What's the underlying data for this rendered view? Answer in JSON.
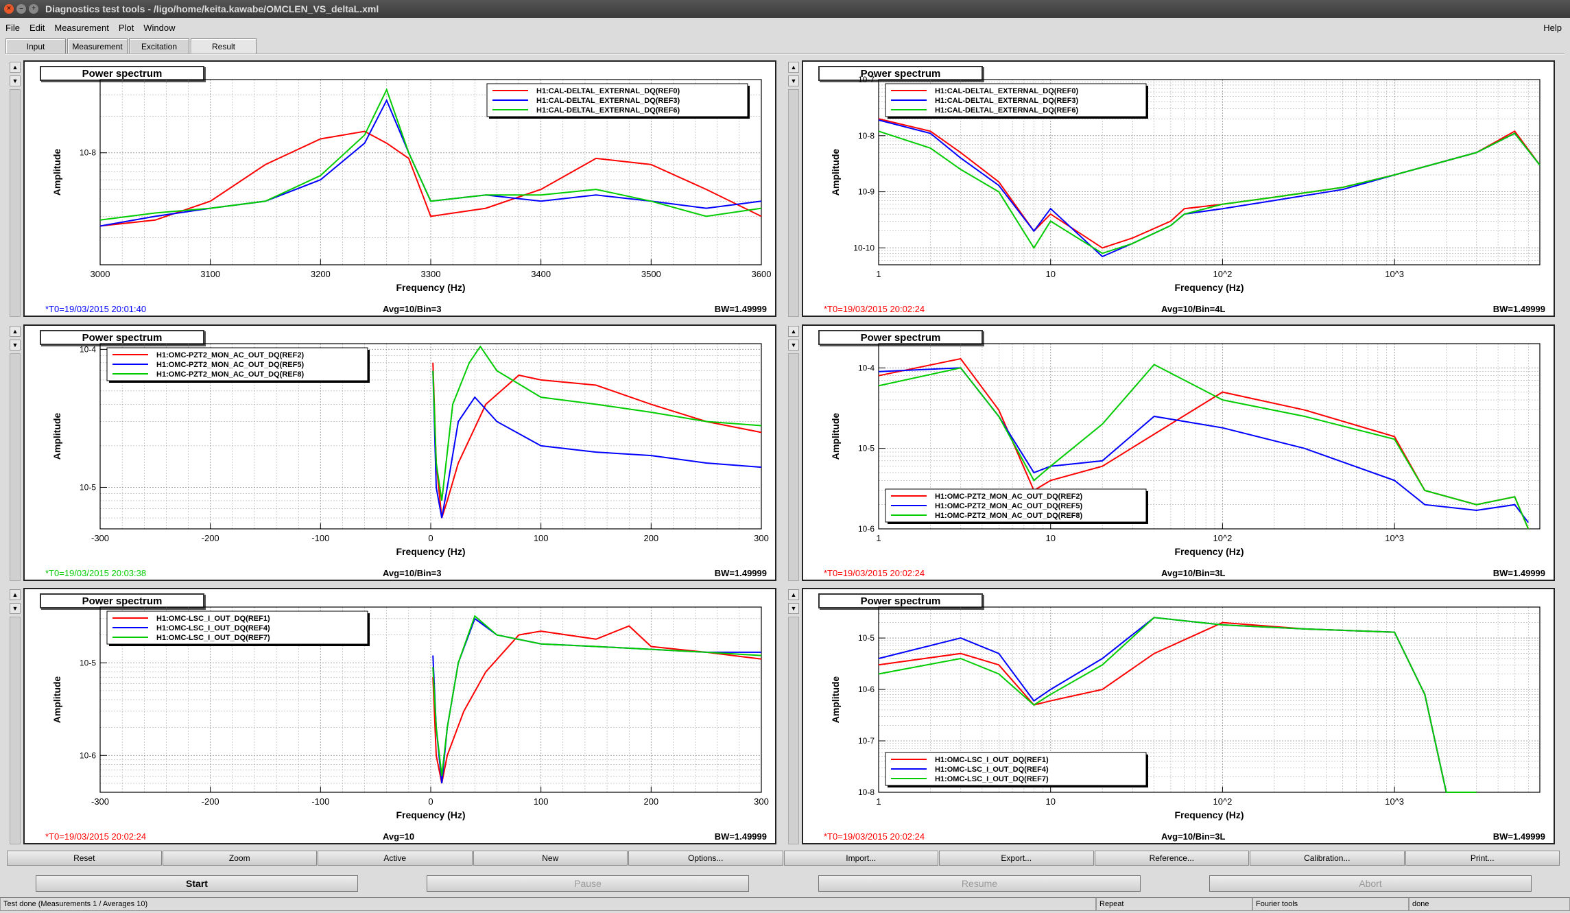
{
  "window": {
    "title": "Diagnostics test tools - /ligo/home/keita.kawabe/OMCLEN_VS_deltaL.xml"
  },
  "menu": {
    "items": [
      "File",
      "Edit",
      "Measurement",
      "Plot",
      "Window"
    ],
    "help": "Help"
  },
  "tabs": [
    "Input",
    "Measurement",
    "Excitation",
    "Result"
  ],
  "colors": {
    "ref_a": "#ff0000",
    "ref_b": "#0000ff",
    "ref_c": "#00cc00"
  },
  "panels": [
    {
      "title": "Power spectrum",
      "t0": "*T0=19/03/2015 20:01:40",
      "t0_color": "#0000ff",
      "avg": "Avg=10/Bin=3",
      "bw": "BW=1.49999",
      "xlabel": "Frequency (Hz)",
      "ylabel": "Amplitude"
    },
    {
      "title": "Power spectrum",
      "t0": "*T0=19/03/2015 20:02:24",
      "t0_color": "#ff0000",
      "avg": "Avg=10/Bin=4L",
      "bw": "BW=1.49999",
      "xlabel": "Frequency (Hz)",
      "ylabel": "Amplitude"
    },
    {
      "title": "Power spectrum",
      "t0": "*T0=19/03/2015 20:03:38",
      "t0_color": "#00cc00",
      "avg": "Avg=10/Bin=3",
      "bw": "BW=1.49999",
      "xlabel": "Frequency (Hz)",
      "ylabel": "Amplitude"
    },
    {
      "title": "Power spectrum",
      "t0": "*T0=19/03/2015 20:02:24",
      "t0_color": "#ff0000",
      "avg": "Avg=10/Bin=3L",
      "bw": "BW=1.49999",
      "xlabel": "Frequency (Hz)",
      "ylabel": "Amplitude"
    },
    {
      "title": "Power spectrum",
      "t0": "*T0=19/03/2015 20:02:24",
      "t0_color": "#ff0000",
      "avg": "Avg=10",
      "bw": "BW=1.49999",
      "xlabel": "Frequency (Hz)",
      "ylabel": "Amplitude"
    },
    {
      "title": "Power spectrum",
      "t0": "*T0=19/03/2015 20:02:24",
      "t0_color": "#ff0000",
      "avg": "Avg=10/Bin=3L",
      "bw": "BW=1.49999",
      "xlabel": "Frequency (Hz)",
      "ylabel": "Amplitude"
    }
  ],
  "chart_data": [
    {
      "type": "line",
      "xscale": "linear",
      "yscale": "log",
      "xlim": [
        3000,
        3600
      ],
      "ylim": [
        1.2e-09,
        4e-08
      ],
      "xticks": [
        "3000",
        "3100",
        "3200",
        "3300",
        "3400",
        "3500",
        "3600"
      ],
      "yticks": [
        {
          "v": 1e-08,
          "label": "10-8"
        }
      ],
      "legend_pos": "top-right",
      "series": [
        {
          "name": "H1:CAL-DELTAL_EXTERNAL_DQ(REF0)",
          "color": "#ff0000",
          "x": [
            3000,
            3050,
            3100,
            3150,
            3200,
            3240,
            3260,
            3280,
            3300,
            3350,
            3400,
            3450,
            3500,
            3550,
            3600
          ],
          "y": [
            2.5e-09,
            2.8e-09,
            4e-09,
            8e-09,
            1.3e-08,
            1.5e-08,
            1.2e-08,
            9e-09,
            3e-09,
            3.5e-09,
            5e-09,
            9e-09,
            8e-09,
            5e-09,
            3e-09
          ]
        },
        {
          "name": "H1:CAL-DELTAL_EXTERNAL_DQ(REF3)",
          "color": "#0000ff",
          "x": [
            3000,
            3050,
            3100,
            3150,
            3200,
            3240,
            3260,
            3280,
            3300,
            3350,
            3400,
            3450,
            3500,
            3550,
            3600
          ],
          "y": [
            2.5e-09,
            3e-09,
            3.5e-09,
            4e-09,
            6e-09,
            1.2e-08,
            2.7e-08,
            1e-08,
            4e-09,
            4.5e-09,
            4e-09,
            4.5e-09,
            4e-09,
            3.5e-09,
            4e-09
          ]
        },
        {
          "name": "H1:CAL-DELTAL_EXTERNAL_DQ(REF6)",
          "color": "#00cc00",
          "x": [
            3000,
            3050,
            3100,
            3150,
            3200,
            3240,
            3260,
            3280,
            3300,
            3350,
            3400,
            3450,
            3500,
            3550,
            3600
          ],
          "y": [
            2.8e-09,
            3.2e-09,
            3.5e-09,
            4e-09,
            6.5e-09,
            1.4e-08,
            3.3e-08,
            1e-08,
            4e-09,
            4.5e-09,
            4.5e-09,
            5e-09,
            4e-09,
            3e-09,
            3.5e-09
          ]
        }
      ]
    },
    {
      "type": "line",
      "xscale": "log",
      "yscale": "log",
      "xlim": [
        1,
        7000
      ],
      "ylim": [
        5e-11,
        1e-07
      ],
      "xticks": [
        {
          "v": 1,
          "label": "1"
        },
        {
          "v": 10,
          "label": "10"
        },
        {
          "v": 100,
          "label": "10^2"
        },
        {
          "v": 1000,
          "label": "10^3"
        }
      ],
      "yticks": [
        {
          "v": 1e-07,
          "label": "10-7"
        },
        {
          "v": 1e-08,
          "label": "10-8"
        },
        {
          "v": 1e-09,
          "label": "10-9"
        },
        {
          "v": 1e-10,
          "label": "10-10"
        }
      ],
      "legend_pos": "top-left",
      "series": [
        {
          "name": "H1:CAL-DELTAL_EXTERNAL_DQ(REF0)",
          "color": "#ff0000",
          "x": [
            1,
            2,
            3,
            5,
            8,
            10,
            20,
            30,
            50,
            60,
            100,
            200,
            500,
            1000,
            3000,
            5000,
            7000
          ],
          "y": [
            2e-08,
            1.2e-08,
            5e-09,
            1.5e-09,
            2e-10,
            4e-10,
            1e-10,
            1.5e-10,
            3e-10,
            5e-10,
            6e-10,
            8e-10,
            1.2e-09,
            2e-09,
            5e-09,
            1.2e-08,
            3e-09
          ]
        },
        {
          "name": "H1:CAL-DELTAL_EXTERNAL_DQ(REF3)",
          "color": "#0000ff",
          "x": [
            1,
            2,
            3,
            5,
            8,
            10,
            20,
            30,
            50,
            60,
            100,
            200,
            500,
            1000,
            3000,
            5000,
            7000
          ],
          "y": [
            1.9e-08,
            1.1e-08,
            4e-09,
            1.3e-09,
            2e-10,
            5e-10,
            7e-11,
            1.2e-10,
            2.5e-10,
            4e-10,
            5e-10,
            7e-10,
            1.1e-09,
            2e-09,
            5e-09,
            1.1e-08,
            3e-09
          ]
        },
        {
          "name": "H1:CAL-DELTAL_EXTERNAL_DQ(REF6)",
          "color": "#00cc00",
          "x": [
            1,
            2,
            3,
            5,
            8,
            10,
            20,
            30,
            50,
            60,
            100,
            200,
            500,
            1000,
            3000,
            5000,
            7000
          ],
          "y": [
            1.2e-08,
            6e-09,
            2.5e-09,
            1e-09,
            1e-10,
            3e-10,
            8e-11,
            1.2e-10,
            2.5e-10,
            4e-10,
            6e-10,
            8e-10,
            1.2e-09,
            2e-09,
            5e-09,
            1.1e-08,
            3e-09
          ]
        }
      ]
    },
    {
      "type": "line",
      "xscale": "linear",
      "yscale": "log",
      "xlim": [
        -300,
        300
      ],
      "ylim": [
        5e-06,
        0.00011
      ],
      "xticks": [
        "-300",
        "-200",
        "-100",
        "0",
        "100",
        "200",
        "300"
      ],
      "yticks": [
        {
          "v": 0.0001,
          "label": "10-4"
        },
        {
          "v": 1e-05,
          "label": "10-5"
        }
      ],
      "legend_pos": "top-left",
      "series": [
        {
          "name": "H1:OMC-PZT2_MON_AC_OUT_DQ(REF2)",
          "color": "#ff0000",
          "x": [
            2,
            5,
            10,
            15,
            25,
            50,
            80,
            100,
            150,
            200,
            250,
            300
          ],
          "y": [
            8e-05,
            1.5e-05,
            6e-06,
            8e-06,
            1.5e-05,
            4e-05,
            6.5e-05,
            6e-05,
            5.5e-05,
            4e-05,
            3e-05,
            2.5e-05
          ]
        },
        {
          "name": "H1:OMC-PZT2_MON_AC_OUT_DQ(REF5)",
          "color": "#0000ff",
          "x": [
            2,
            5,
            10,
            15,
            25,
            40,
            60,
            100,
            150,
            200,
            250,
            300
          ],
          "y": [
            7e-05,
            1e-05,
            6e-06,
            1e-05,
            3e-05,
            4.5e-05,
            3e-05,
            2e-05,
            1.8e-05,
            1.7e-05,
            1.5e-05,
            1.4e-05
          ]
        },
        {
          "name": "H1:OMC-PZT2_MON_AC_OUT_DQ(REF8)",
          "color": "#00cc00",
          "x": [
            2,
            5,
            10,
            20,
            35,
            45,
            60,
            100,
            150,
            200,
            250,
            300
          ],
          "y": [
            7e-05,
            1.5e-05,
            8e-06,
            4e-05,
            8e-05,
            0.000105,
            7e-05,
            4.5e-05,
            4e-05,
            3.5e-05,
            3e-05,
            2.8e-05
          ]
        }
      ]
    },
    {
      "type": "line",
      "xscale": "log",
      "yscale": "log",
      "xlim": [
        1,
        7000
      ],
      "ylim": [
        1e-06,
        0.0002
      ],
      "xticks": [
        {
          "v": 1,
          "label": "1"
        },
        {
          "v": 10,
          "label": "10"
        },
        {
          "v": 100,
          "label": "10^2"
        },
        {
          "v": 1000,
          "label": "10^3"
        }
      ],
      "yticks": [
        {
          "v": 0.0001,
          "label": "10-4"
        },
        {
          "v": 1e-05,
          "label": "10-5"
        },
        {
          "v": 1e-06,
          "label": "10-6"
        }
      ],
      "legend_pos": "bottom-left",
      "series": [
        {
          "name": "H1:OMC-PZT2_MON_AC_OUT_DQ(REF2)",
          "color": "#ff0000",
          "x": [
            1,
            3,
            5,
            8,
            10,
            20,
            40,
            100,
            300,
            1000,
            1500,
            3000,
            5000,
            6000
          ],
          "y": [
            8e-05,
            0.00013,
            3e-05,
            3e-06,
            4e-06,
            6e-06,
            1.5e-05,
            5e-05,
            3e-05,
            1.4e-05,
            3e-06,
            2e-06,
            2.5e-06,
            1e-06
          ]
        },
        {
          "name": "H1:OMC-PZT2_MON_AC_OUT_DQ(REF5)",
          "color": "#0000ff",
          "x": [
            1,
            3,
            5,
            8,
            10,
            20,
            40,
            100,
            300,
            1000,
            1500,
            3000,
            5000,
            6000
          ],
          "y": [
            9e-05,
            0.0001,
            2.5e-05,
            5e-06,
            6e-06,
            7e-06,
            2.5e-05,
            1.8e-05,
            1e-05,
            4e-06,
            2e-06,
            1.7e-06,
            2e-06,
            1.2e-06
          ]
        },
        {
          "name": "H1:OMC-PZT2_MON_AC_OUT_DQ(REF8)",
          "color": "#00cc00",
          "x": [
            1,
            3,
            5,
            8,
            10,
            20,
            40,
            100,
            300,
            1000,
            1500,
            3000,
            5000,
            6000
          ],
          "y": [
            6e-05,
            0.0001,
            2.5e-05,
            4e-06,
            6e-06,
            2e-05,
            0.00011,
            4e-05,
            2.5e-05,
            1.3e-05,
            3e-06,
            2e-06,
            2.5e-06,
            1e-06
          ]
        }
      ]
    },
    {
      "type": "line",
      "xscale": "linear",
      "yscale": "log",
      "xlim": [
        -300,
        300
      ],
      "ylim": [
        4e-07,
        4e-05
      ],
      "xticks": [
        "-300",
        "-200",
        "-100",
        "0",
        "100",
        "200",
        "300"
      ],
      "yticks": [
        {
          "v": 1e-05,
          "label": "10-5"
        },
        {
          "v": 1e-06,
          "label": "10-6"
        }
      ],
      "legend_pos": "top-left",
      "series": [
        {
          "name": "H1:OMC-LSC_I_OUT_DQ(REF1)",
          "color": "#ff0000",
          "x": [
            2,
            5,
            10,
            15,
            30,
            50,
            80,
            100,
            150,
            180,
            200,
            250,
            300
          ],
          "y": [
            7e-06,
            1e-06,
            5e-07,
            1e-06,
            3e-06,
            8e-06,
            2e-05,
            2.2e-05,
            1.8e-05,
            2.5e-05,
            1.5e-05,
            1.3e-05,
            1.1e-05
          ]
        },
        {
          "name": "H1:OMC-LSC_I_OUT_DQ(REF4)",
          "color": "#0000ff",
          "x": [
            2,
            5,
            10,
            15,
            25,
            40,
            60,
            100,
            150,
            200,
            250,
            300
          ],
          "y": [
            1.2e-05,
            2e-06,
            5e-07,
            2e-06,
            1e-05,
            3e-05,
            2e-05,
            1.6e-05,
            1.5e-05,
            1.4e-05,
            1.3e-05,
            1.3e-05
          ]
        },
        {
          "name": "H1:OMC-LSC_I_OUT_DQ(REF7)",
          "color": "#00cc00",
          "x": [
            2,
            5,
            10,
            15,
            25,
            40,
            60,
            100,
            150,
            200,
            250,
            300
          ],
          "y": [
            9e-06,
            2e-06,
            6e-07,
            2e-06,
            1e-05,
            3.2e-05,
            2e-05,
            1.6e-05,
            1.5e-05,
            1.4e-05,
            1.3e-05,
            1.2e-05
          ]
        }
      ]
    },
    {
      "type": "line",
      "xscale": "log",
      "yscale": "log",
      "xlim": [
        1,
        7000
      ],
      "ylim": [
        1e-08,
        4e-05
      ],
      "xticks": [
        {
          "v": 1,
          "label": "1"
        },
        {
          "v": 10,
          "label": "10"
        },
        {
          "v": 100,
          "label": "10^2"
        },
        {
          "v": 1000,
          "label": "10^3"
        }
      ],
      "yticks": [
        {
          "v": 1e-05,
          "label": "10-5"
        },
        {
          "v": 1e-06,
          "label": "10-6"
        },
        {
          "v": 1e-07,
          "label": "10-7"
        },
        {
          "v": 1e-08,
          "label": "10-8"
        }
      ],
      "legend_pos": "bottom-left",
      "series": [
        {
          "name": "H1:OMC-LSC_I_OUT_DQ(REF1)",
          "color": "#ff0000",
          "x": [
            1,
            3,
            5,
            8,
            10,
            20,
            40,
            100,
            300,
            1000,
            1500,
            2000,
            2500,
            3000
          ],
          "y": [
            3e-06,
            5e-06,
            3e-06,
            5e-07,
            6e-07,
            1e-06,
            5e-06,
            2e-05,
            1.5e-05,
            1.3e-05,
            8e-07,
            1e-08,
            1e-08,
            1e-08
          ]
        },
        {
          "name": "H1:OMC-LSC_I_OUT_DQ(REF4)",
          "color": "#0000ff",
          "x": [
            1,
            3,
            5,
            8,
            10,
            20,
            40,
            100,
            300,
            1000,
            1500,
            2000,
            2500,
            3000
          ],
          "y": [
            4e-06,
            1e-05,
            5e-06,
            6e-07,
            1e-06,
            4e-06,
            2.5e-05,
            1.8e-05,
            1.5e-05,
            1.3e-05,
            8e-07,
            1e-08,
            1e-08,
            1e-08
          ]
        },
        {
          "name": "H1:OMC-LSC_I_OUT_DQ(REF7)",
          "color": "#00cc00",
          "x": [
            1,
            3,
            5,
            8,
            10,
            20,
            40,
            100,
            300,
            1000,
            1500,
            2000,
            2500,
            3000
          ],
          "y": [
            2e-06,
            4e-06,
            2e-06,
            5e-07,
            8e-07,
            3e-06,
            2.5e-05,
            1.8e-05,
            1.5e-05,
            1.3e-05,
            8e-07,
            1e-08,
            1e-08,
            1e-08
          ]
        }
      ]
    }
  ],
  "buttons_row1": [
    "Reset",
    "Zoom",
    "Active",
    "New",
    "Options...",
    "Import...",
    "Export...",
    "Reference...",
    "Calibration...",
    "Print..."
  ],
  "buttons_row2": {
    "start": "Start",
    "pause": "Pause",
    "resume": "Resume",
    "abort": "Abort"
  },
  "status": {
    "message": "Test done (Measurements 1 / Averages 10)",
    "mode": "Repeat",
    "tool": "Fourier tools",
    "state": "done"
  }
}
